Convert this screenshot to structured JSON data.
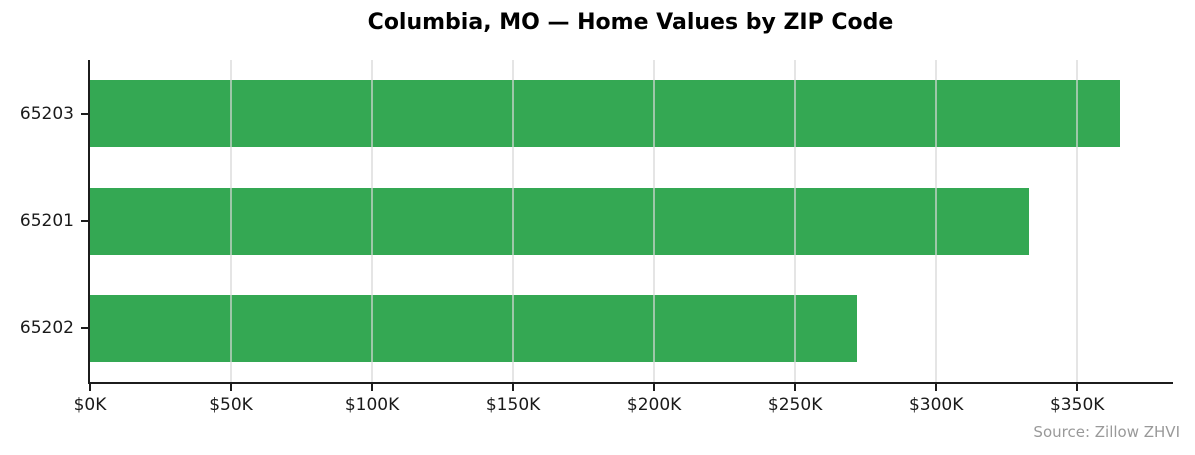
{
  "chart_data": {
    "type": "bar",
    "orientation": "horizontal",
    "title": "Columbia, MO — Home Values by ZIP Code",
    "categories": [
      "65203",
      "65201",
      "65202"
    ],
    "values": [
      365000,
      333000,
      272000
    ],
    "xlabel": "",
    "ylabel": "",
    "xlim": [
      0,
      383250
    ],
    "xticks": [
      {
        "value": 0,
        "label": "$0K"
      },
      {
        "value": 50000,
        "label": "$50K"
      },
      {
        "value": 100000,
        "label": "$100K"
      },
      {
        "value": 150000,
        "label": "$150K"
      },
      {
        "value": 200000,
        "label": "$200K"
      },
      {
        "value": 250000,
        "label": "$250K"
      },
      {
        "value": 300000,
        "label": "$300K"
      },
      {
        "value": 350000,
        "label": "$350K"
      }
    ],
    "grid": "vertical-only",
    "legend": "none",
    "spines": "left-and-bottom-only"
  },
  "source_note": "Source: Zillow ZHVI",
  "colors": {
    "bar": "#34a853",
    "gridline": "rgba(215,215,215,0.65)",
    "spine": "#1c1c1c",
    "tick_mark": "#1c1c1c",
    "tick_label": "#1a1a1a",
    "title": "#000000",
    "source": "#999999",
    "background": "#ffffff"
  }
}
